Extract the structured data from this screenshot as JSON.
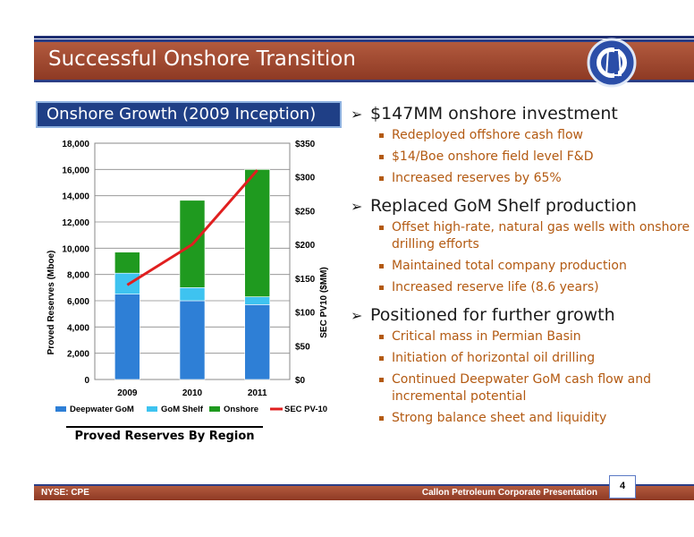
{
  "slide": {
    "title": "Successful Onshore Transition",
    "section_label": "Onshore Growth (2009 Inception)",
    "chart_caption": "Proved Reserves By Region",
    "footer_left": "NYSE: CPE",
    "footer_right": "Callon Petroleum Corporate Presentation",
    "page_number": "4"
  },
  "bullets": [
    {
      "text": "$147MM onshore investment",
      "sub": [
        "Redeployed offshore cash flow",
        "$14/Boe onshore field level F&D",
        "Increased reserves by 65%"
      ]
    },
    {
      "text": "Replaced GoM Shelf production",
      "sub": [
        "Offset high-rate, natural gas wells with onshore drilling efforts",
        "Maintained total company production",
        "Increased reserve life (8.6 years)"
      ]
    },
    {
      "text": "Positioned for further growth",
      "sub": [
        "Critical mass in Permian Basin",
        "Initiation of horizontal oil drilling",
        "Continued Deepwater GoM cash flow and incremental potential",
        "Strong balance sheet and liquidity"
      ]
    }
  ],
  "colors": {
    "deepwater": "#2e7fd6",
    "shelf": "#3ec3f0",
    "onshore": "#1f9a1f",
    "pv10": "#e01f1f"
  },
  "chart_data": {
    "type": "bar",
    "categories": [
      "2009",
      "2010",
      "2011"
    ],
    "series": [
      {
        "name": "Deepwater GoM",
        "values": [
          6500,
          6000,
          5700
        ]
      },
      {
        "name": "GoM Shelf",
        "values": [
          1600,
          1000,
          600
        ]
      },
      {
        "name": "Onshore",
        "values": [
          1600,
          6650,
          9700
        ]
      },
      {
        "name": "SEC PV-10",
        "axis": "right",
        "type": "line",
        "values": [
          140,
          200,
          310
        ]
      }
    ],
    "ylabel": "Proved Reserves (Mboe)",
    "y2label": "SEC PV10 ($MM)",
    "ylim": [
      0,
      18000
    ],
    "y2lim": [
      0,
      350
    ],
    "yticks": [
      "0",
      "2,000",
      "4,000",
      "6,000",
      "8,000",
      "10,000",
      "12,000",
      "14,000",
      "16,000",
      "18,000"
    ],
    "y2ticks": [
      "$0",
      "$50",
      "$100",
      "$150",
      "$200",
      "$250",
      "$300",
      "$350"
    ],
    "legend_position": "bottom",
    "grid": true
  }
}
